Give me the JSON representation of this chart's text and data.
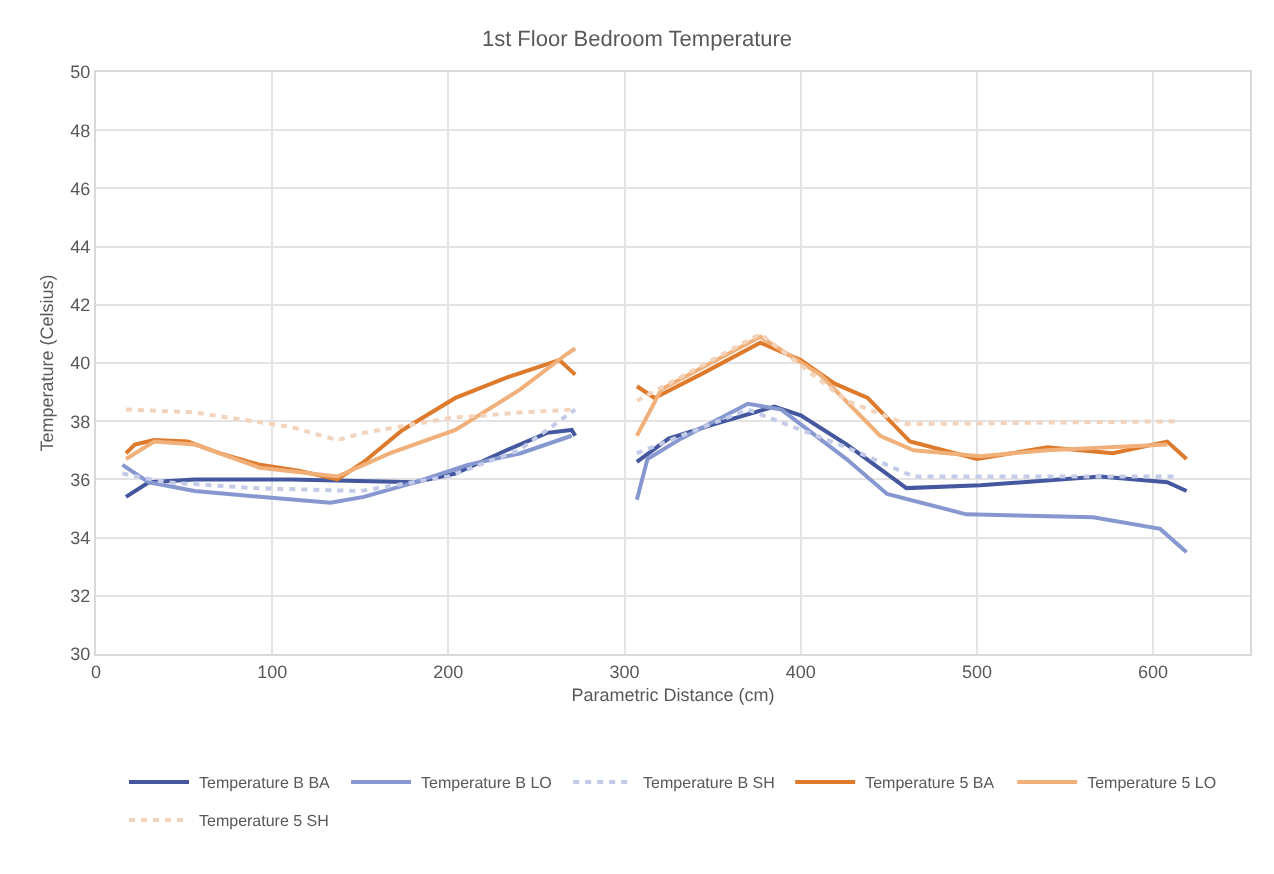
{
  "chart_data": {
    "type": "line",
    "title": "1st Floor Bedroom Temperature",
    "xlabel": "Parametric Distance (cm)",
    "ylabel": "Temperature (Celsius)",
    "xlim": [
      0,
      655
    ],
    "xticks": [
      0,
      100,
      200,
      300,
      400,
      500,
      600
    ],
    "ylim": [
      30,
      50
    ],
    "yticks": [
      30,
      32,
      34,
      36,
      38,
      40,
      42,
      44,
      46,
      48,
      50
    ],
    "grid": true,
    "legend": "bottom",
    "marker": "none",
    "series": [
      {
        "name": "Temperature B BA",
        "color": "#44579f",
        "line_style": "solid",
        "x": [
          17,
          30,
          56,
          111,
          181,
          204,
          233,
          256,
          270,
          272,
          290,
          307,
          325,
          351,
          385,
          400,
          426,
          460,
          502,
          570,
          608,
          619
        ],
        "values": [
          35.4,
          35.9,
          36.0,
          36.0,
          35.9,
          36.2,
          37.0,
          37.6,
          37.7,
          37.5,
          null,
          36.6,
          37.4,
          37.9,
          38.5,
          38.2,
          37.2,
          35.7,
          35.8,
          36.1,
          35.9,
          35.6
        ]
      },
      {
        "name": "Temperature B LO",
        "color": "#8797d0",
        "line_style": "solid",
        "x": [
          15,
          30,
          56,
          93,
          133,
          152,
          181,
          211,
          241,
          270,
          290,
          307,
          313,
          332,
          370,
          389,
          426,
          449,
          494,
          566,
          604,
          619
        ],
        "values": [
          36.5,
          35.9,
          35.6,
          35.4,
          35.2,
          35.4,
          35.9,
          36.5,
          36.9,
          37.5,
          null,
          35.3,
          36.7,
          37.4,
          38.6,
          38.4,
          36.7,
          35.5,
          34.8,
          34.7,
          34.3,
          33.5
        ]
      },
      {
        "name": "Temperature B SH",
        "color": "#c3cbe8",
        "line_style": "dotted",
        "x": [
          15,
          40,
          90,
          150,
          200,
          240,
          272,
          290,
          307,
          370,
          426,
          464,
          615
        ],
        "values": [
          36.2,
          35.9,
          35.7,
          35.6,
          36.1,
          37.0,
          38.4,
          null,
          36.9,
          38.4,
          37.1,
          36.1,
          36.1
        ]
      },
      {
        "name": "Temperature 5 BA",
        "color": "#de7a2c",
        "line_style": "solid",
        "x": [
          17,
          22,
          33,
          52,
          70,
          93,
          115,
          137,
          152,
          174,
          204,
          233,
          263,
          272,
          290,
          307,
          317,
          343,
          377,
          400,
          419,
          438,
          462,
          500,
          540,
          577,
          608,
          619
        ],
        "values": [
          36.9,
          37.2,
          37.35,
          37.3,
          36.9,
          36.5,
          36.3,
          36.0,
          36.6,
          37.7,
          38.8,
          39.5,
          40.1,
          39.6,
          null,
          39.2,
          38.8,
          39.6,
          40.7,
          40.1,
          39.3,
          38.8,
          37.3,
          36.7,
          37.1,
          36.9,
          37.3,
          36.7
        ]
      },
      {
        "name": "Temperature 5 LO",
        "color": "#f1b07a",
        "line_style": "solid",
        "x": [
          17,
          33,
          56,
          93,
          137,
          167,
          204,
          241,
          267,
          272,
          290,
          307,
          321,
          377,
          411,
          445,
          464,
          502,
          540,
          608
        ],
        "values": [
          36.7,
          37.3,
          37.2,
          36.4,
          36.1,
          36.9,
          37.7,
          39.1,
          40.3,
          40.5,
          null,
          37.5,
          39.1,
          40.9,
          39.6,
          37.5,
          37.0,
          36.8,
          37.0,
          37.2
        ]
      },
      {
        "name": "Temperature 5 SH",
        "color": "#f3d3bb",
        "line_style": "dotted",
        "x": [
          17,
          56,
          111,
          137,
          152,
          200,
          240,
          272,
          290,
          307,
          377,
          426,
          460,
          615
        ],
        "values": [
          38.4,
          38.3,
          37.8,
          37.35,
          37.6,
          38.1,
          38.3,
          38.4,
          null,
          38.7,
          41.0,
          38.7,
          37.9,
          38.0
        ]
      }
    ]
  }
}
